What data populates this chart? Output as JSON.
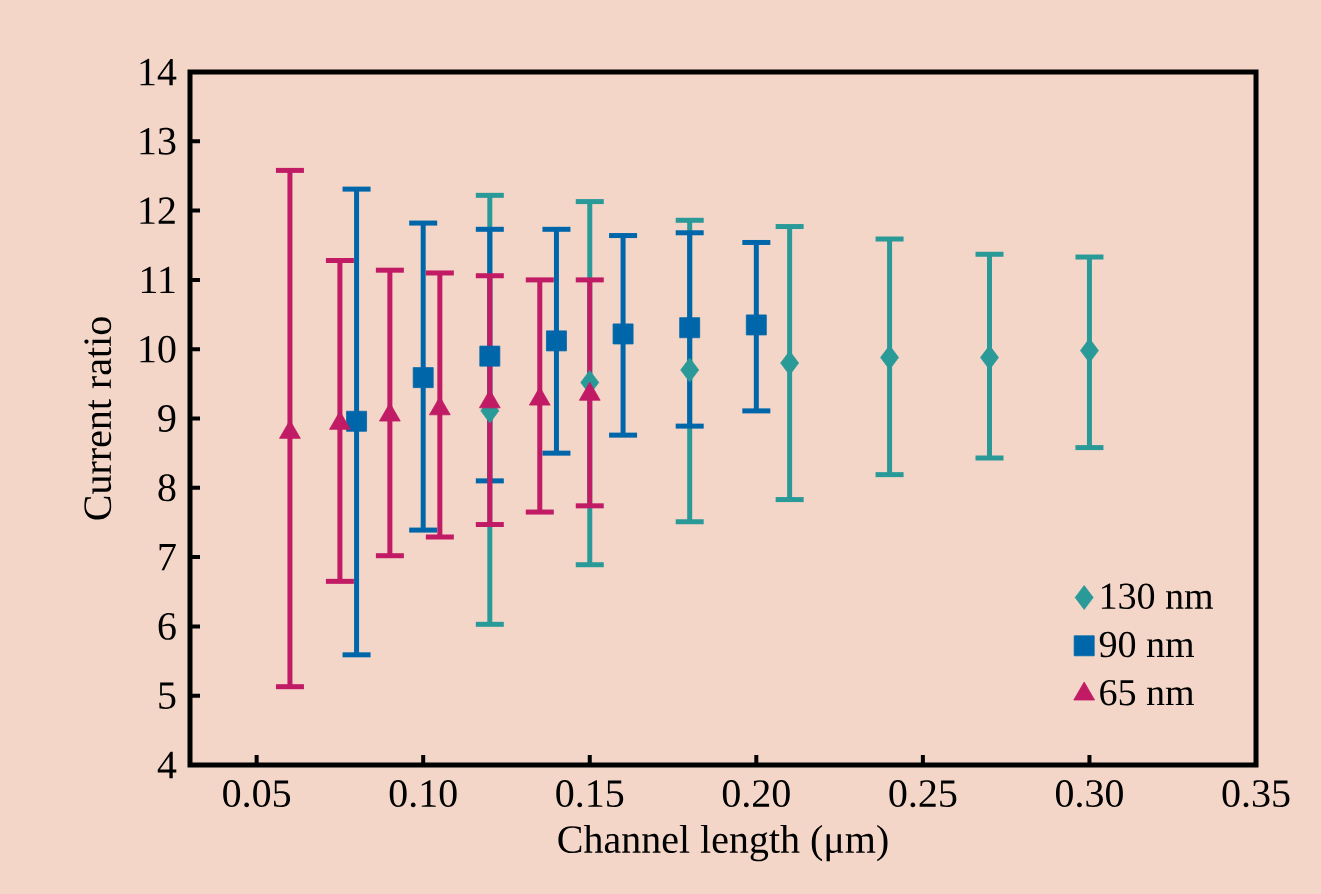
{
  "chart_data": {
    "type": "scatter",
    "xlabel": "Channel length (μm)",
    "ylabel": "Current ratio",
    "xlim": [
      0.03,
      0.35
    ],
    "ylim": [
      4,
      14
    ],
    "xticks": [
      {
        "value": 0.05,
        "label": "0.05"
      },
      {
        "value": 0.1,
        "label": "0.10"
      },
      {
        "value": 0.15,
        "label": "0.15"
      },
      {
        "value": 0.2,
        "label": "0.20"
      },
      {
        "value": 0.25,
        "label": "0.25"
      },
      {
        "value": 0.3,
        "label": "0.30"
      },
      {
        "value": 0.35,
        "label": "0.35"
      }
    ],
    "yticks": [
      4,
      5,
      6,
      7,
      8,
      9,
      10,
      11,
      12,
      13,
      14
    ],
    "grid": false,
    "legend": "bottom right",
    "series": [
      {
        "name": "130 nm",
        "color": "#2a9a98",
        "marker": "diamond",
        "x": [
          0.12,
          0.15,
          0.18,
          0.21,
          0.24,
          0.27,
          0.3
        ],
        "values": [
          9.11,
          9.52,
          9.7,
          9.8,
          9.88,
          9.88,
          9.98
        ],
        "errors": [
          [
            6.03,
            12.22
          ],
          [
            6.89,
            12.13
          ],
          [
            7.51,
            11.86
          ],
          [
            7.83,
            11.77
          ],
          [
            8.19,
            11.59
          ],
          [
            8.43,
            11.37
          ],
          [
            8.58,
            11.33
          ]
        ]
      },
      {
        "name": "90 nm",
        "color": "#0066aa",
        "marker": "square",
        "x": [
          0.08,
          0.1,
          0.12,
          0.14,
          0.16,
          0.18,
          0.2
        ],
        "values": [
          8.96,
          9.59,
          9.9,
          10.12,
          10.22,
          10.31,
          10.35
        ],
        "errors": [
          [
            5.59,
            12.31
          ],
          [
            7.39,
            11.82
          ],
          [
            8.1,
            11.73
          ],
          [
            8.5,
            11.73
          ],
          [
            8.76,
            11.64
          ],
          [
            8.89,
            11.68
          ],
          [
            9.11,
            11.54
          ]
        ]
      },
      {
        "name": "65 nm",
        "color": "#c01b64",
        "marker": "triangle",
        "x": [
          0.06,
          0.075,
          0.09,
          0.105,
          0.12,
          0.135,
          0.15
        ],
        "values": [
          8.8,
          8.93,
          9.05,
          9.14,
          9.24,
          9.28,
          9.35
        ],
        "errors": [
          [
            5.13,
            12.58
          ],
          [
            6.65,
            11.28
          ],
          [
            7.02,
            11.14
          ],
          [
            7.29,
            11.1
          ],
          [
            7.47,
            11.06
          ],
          [
            7.65,
            11.0
          ],
          [
            7.74,
            11.0
          ]
        ]
      }
    ]
  }
}
